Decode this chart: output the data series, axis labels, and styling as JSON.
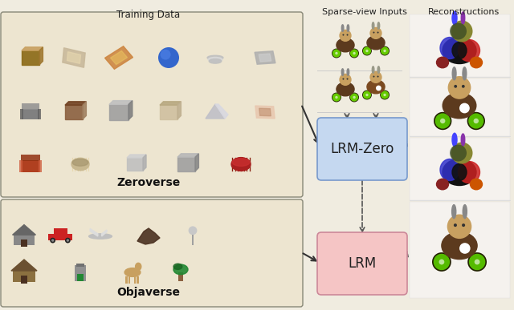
{
  "bg_color": "#f0ece0",
  "title_training_data": "Training Data",
  "title_sparse": "Sparse-view Inputs",
  "title_recon": "Reconstructions",
  "label_zeroverse": "Zeroverse",
  "label_objaverse": "Objaverse",
  "label_lrmzero": "LRM-Zero",
  "label_lrm": "LRM",
  "lrmzero_box_color": "#c5d8f0",
  "lrm_box_color": "#f5c5c5",
  "zeroverse_bg": "#ede5d0",
  "objaverse_bg": "#ede5d0",
  "box_border": "#555555",
  "arrow_color": "#333333",
  "dashed_color": "#555555",
  "title_fontsize": 8.5,
  "label_fontsize": 10,
  "model_fontsize": 12,
  "fig_width": 6.4,
  "fig_height": 3.87,
  "bunny_body": "#5C3A1E",
  "bunny_head": "#C8A060",
  "bunny_ear": "#888888",
  "bunny_ear2": "#777799",
  "wheel_green": "#66CC00",
  "wheel_dark": "#333300",
  "recon_rainbow_bg": "#050510",
  "recon_bunny_bg": "#f0ece0",
  "separator_color": "#cccccc",
  "lrmzero_border": "#7799cc",
  "lrm_border": "#cc8899"
}
